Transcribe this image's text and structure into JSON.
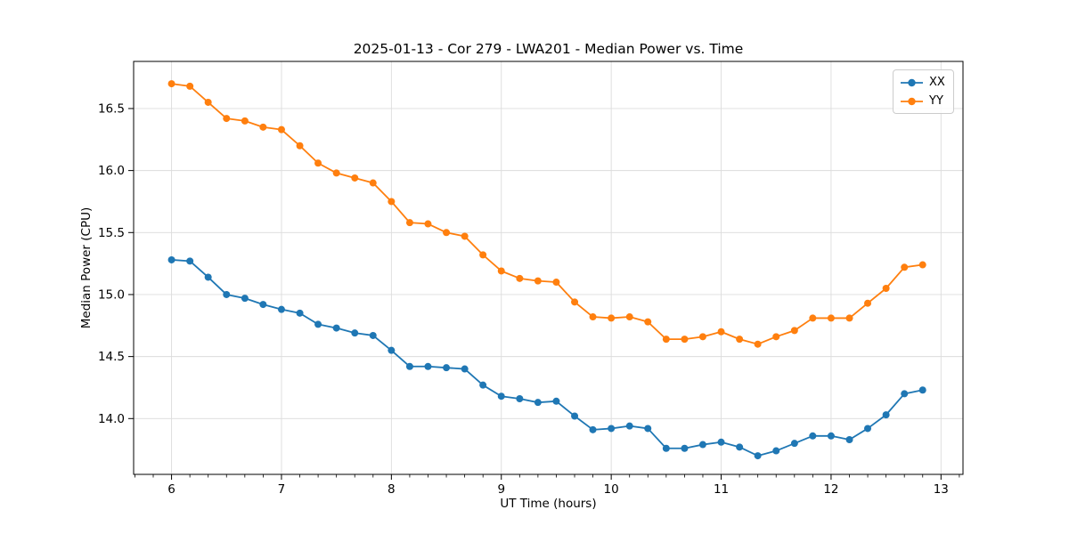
{
  "chart_data": {
    "type": "line",
    "title": "2025-01-13 - Cor 279 - LWA201 - Median Power vs. Time",
    "xlabel": "UT Time (hours)",
    "ylabel": "Median Power (CPU)",
    "xlim": [
      5.655,
      13.2
    ],
    "ylim": [
      13.55,
      16.88
    ],
    "x_ticks": [
      6,
      7,
      8,
      9,
      10,
      11,
      12,
      13
    ],
    "y_ticks": [
      14.0,
      14.5,
      15.0,
      15.5,
      16.0,
      16.5
    ],
    "x_minor_tick_step_hours": 0.1667,
    "grid": true,
    "grid_color": "#dcdcdc",
    "spine_color": "#000000",
    "legend_position": "upper right",
    "x": [
      6.0,
      6.167,
      6.333,
      6.5,
      6.667,
      6.833,
      7.0,
      7.167,
      7.333,
      7.5,
      7.667,
      7.833,
      8.0,
      8.167,
      8.333,
      8.5,
      8.667,
      8.833,
      9.0,
      9.167,
      9.333,
      9.5,
      9.667,
      9.833,
      10.0,
      10.167,
      10.333,
      10.5,
      10.667,
      10.833,
      11.0,
      11.167,
      11.333,
      11.5,
      11.667,
      11.833,
      12.0,
      12.167,
      12.333,
      12.5,
      12.667,
      12.833
    ],
    "series": [
      {
        "name": "XX",
        "color": "#1f77b4",
        "values": [
          15.28,
          15.27,
          15.14,
          15.0,
          14.97,
          14.92,
          14.88,
          14.85,
          14.76,
          14.73,
          14.69,
          14.67,
          14.55,
          14.42,
          14.42,
          14.41,
          14.4,
          14.27,
          14.18,
          14.16,
          14.13,
          14.14,
          14.02,
          13.91,
          13.92,
          13.94,
          13.92,
          13.76,
          13.76,
          13.79,
          13.81,
          13.77,
          13.7,
          13.74,
          13.8,
          13.86,
          13.86,
          13.83,
          13.92,
          14.03,
          14.2,
          14.23
        ]
      },
      {
        "name": "YY",
        "color": "#ff7f0e",
        "values": [
          16.7,
          16.68,
          16.55,
          16.42,
          16.4,
          16.35,
          16.33,
          16.2,
          16.06,
          15.98,
          15.94,
          15.9,
          15.75,
          15.58,
          15.57,
          15.5,
          15.47,
          15.32,
          15.19,
          15.13,
          15.11,
          15.1,
          14.94,
          14.82,
          14.81,
          14.82,
          14.78,
          14.64,
          14.64,
          14.66,
          14.7,
          14.64,
          14.6,
          14.66,
          14.71,
          14.81,
          14.81,
          14.81,
          14.93,
          15.05,
          15.22,
          15.24
        ]
      }
    ]
  }
}
